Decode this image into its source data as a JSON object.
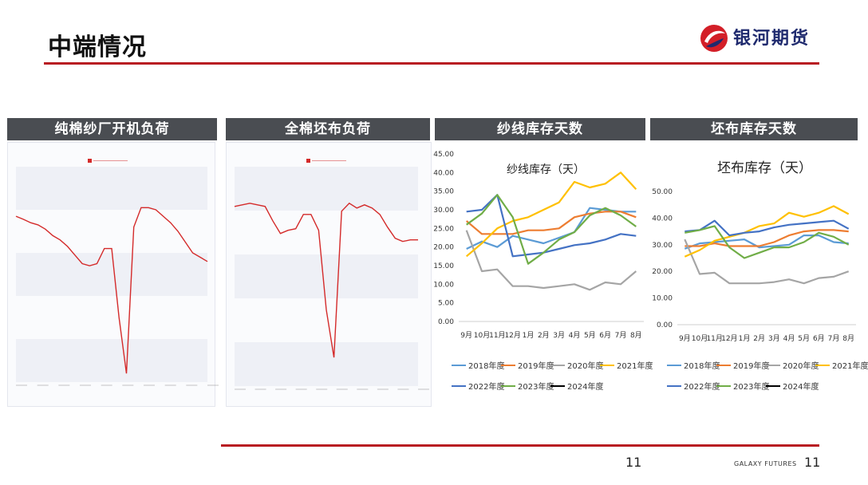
{
  "page": {
    "title": "中端情况",
    "brand": "银河期货",
    "footer_brand": "GALAXY FUTURES",
    "page_number_center": "11",
    "page_number_right": "11",
    "accent_color": "#b81c22"
  },
  "panels": [
    {
      "header": "纯棉纱厂开机负荷"
    },
    {
      "header": "全棉坯布负荷"
    },
    {
      "header": "纱线库存天数"
    },
    {
      "header": "坯布库存天数"
    }
  ],
  "legend": [
    {
      "name": "2018年度",
      "color": "#5b9bd5"
    },
    {
      "name": "2019年度",
      "color": "#ed7d31"
    },
    {
      "name": "2020年度",
      "color": "#a5a5a5"
    },
    {
      "name": "2021年度",
      "color": "#ffc000"
    },
    {
      "name": "2022年度",
      "color": "#4472c4"
    },
    {
      "name": "2023年度",
      "color": "#70ad47"
    },
    {
      "name": "2024年度",
      "color": "#000000"
    }
  ],
  "chart_data": [
    {
      "type": "line",
      "title": "纯棉纱厂开机负荷",
      "series": [
        {
          "name": "",
          "values": [
            58.5,
            57.8,
            57.0,
            56.5,
            55.5,
            54.0,
            53.0,
            51.5,
            49.5,
            47.5,
            47.0,
            47.5,
            51.0,
            51.0,
            35.0,
            22.0,
            56.0,
            60.5,
            60.5,
            60.0,
            58.5,
            57.0,
            55.0,
            52.5,
            50.0,
            49.0,
            48.0
          ]
        }
      ],
      "ylim": [
        20,
        70
      ],
      "color": "#d42a2a"
    },
    {
      "type": "line",
      "title": "全棉坯布负荷",
      "series": [
        {
          "name": "",
          "values": [
            57.5,
            58.0,
            58.5,
            58.0,
            57.5,
            53.0,
            49.0,
            50.0,
            50.5,
            55.0,
            55.0,
            50.0,
            25.0,
            10.0,
            56.0,
            58.5,
            57.0,
            58.0,
            57.0,
            55.0,
            51.0,
            47.5,
            46.5,
            47.0,
            47.0
          ]
        }
      ],
      "ylim": [
        1,
        70
      ],
      "color": "#d42a2a"
    },
    {
      "type": "line",
      "title": "纱线库存（天）",
      "categories": [
        "9月",
        "10月",
        "11月",
        "12月",
        "1月",
        "2月",
        "3月",
        "4月",
        "5月",
        "6月",
        "7月",
        "8月"
      ],
      "ylim": [
        0,
        45
      ],
      "yticks": [
        "0.00",
        "5.00",
        "10.00",
        "15.00",
        "20.00",
        "25.00",
        "30.00",
        "35.00",
        "40.00",
        "45.00"
      ],
      "series": [
        {
          "name": "2018年度",
          "values": [
            19.5,
            21.5,
            20.0,
            23.0,
            22.0,
            21.0,
            22.5,
            24.0,
            30.5,
            30.0,
            29.5,
            29.5
          ]
        },
        {
          "name": "2019年度",
          "values": [
            27.0,
            23.5,
            23.5,
            23.5,
            24.5,
            24.5,
            25.0,
            28.0,
            29.0,
            29.5,
            29.5,
            28.0
          ]
        },
        {
          "name": "2020年度",
          "values": [
            24.5,
            13.5,
            14.0,
            9.5,
            9.5,
            9.0,
            9.5,
            10.0,
            8.5,
            10.5,
            10.0,
            13.5
          ]
        },
        {
          "name": "2021年度",
          "values": [
            17.5,
            21.0,
            25.0,
            27.0,
            28.0,
            30.0,
            32.0,
            37.5,
            36.0,
            37.0,
            40.0,
            35.5
          ]
        },
        {
          "name": "2022年度",
          "values": [
            29.5,
            30.0,
            34.0,
            17.5,
            18.0,
            18.5,
            19.5,
            20.5,
            21.0,
            22.0,
            23.5,
            23.0
          ]
        },
        {
          "name": "2023年度",
          "values": [
            26.0,
            29.0,
            34.0,
            28.0,
            15.5,
            18.5,
            22.0,
            24.0,
            28.5,
            30.5,
            28.5,
            25.5
          ]
        }
      ]
    },
    {
      "type": "line",
      "title": "坯布库存（天）",
      "categories": [
        "9月",
        "10月",
        "11月",
        "12月",
        "1月",
        "2月",
        "3月",
        "4月",
        "5月",
        "6月",
        "7月",
        "8月"
      ],
      "ylim": [
        0,
        50
      ],
      "yticks": [
        "0.00",
        "10.00",
        "20.00",
        "30.00",
        "40.00",
        "50.00"
      ],
      "series": [
        {
          "name": "2018年度",
          "values": [
            28.5,
            30.5,
            31.0,
            31.5,
            32.0,
            29.0,
            29.5,
            30.0,
            33.5,
            33.5,
            31.0,
            30.5
          ]
        },
        {
          "name": "2019年度",
          "values": [
            29.5,
            29.5,
            30.5,
            29.5,
            29.5,
            29.5,
            31.0,
            33.5,
            35.0,
            35.5,
            35.5,
            35.0
          ]
        },
        {
          "name": "2020年度",
          "values": [
            32.0,
            19.0,
            19.5,
            15.5,
            15.5,
            15.5,
            16.0,
            17.0,
            15.5,
            17.5,
            18.0,
            20.0
          ]
        },
        {
          "name": "2021年度",
          "values": [
            25.5,
            28.0,
            31.5,
            33.0,
            34.5,
            37.0,
            38.0,
            42.0,
            40.5,
            42.0,
            44.5,
            41.5
          ]
        },
        {
          "name": "2022年度",
          "values": [
            35.0,
            35.5,
            39.0,
            33.5,
            34.5,
            35.0,
            36.5,
            37.5,
            38.0,
            38.5,
            39.0,
            36.0
          ]
        },
        {
          "name": "2023年度",
          "values": [
            34.5,
            35.5,
            37.0,
            29.0,
            25.0,
            27.0,
            29.0,
            29.0,
            31.0,
            34.5,
            33.0,
            30.0
          ]
        }
      ]
    }
  ]
}
